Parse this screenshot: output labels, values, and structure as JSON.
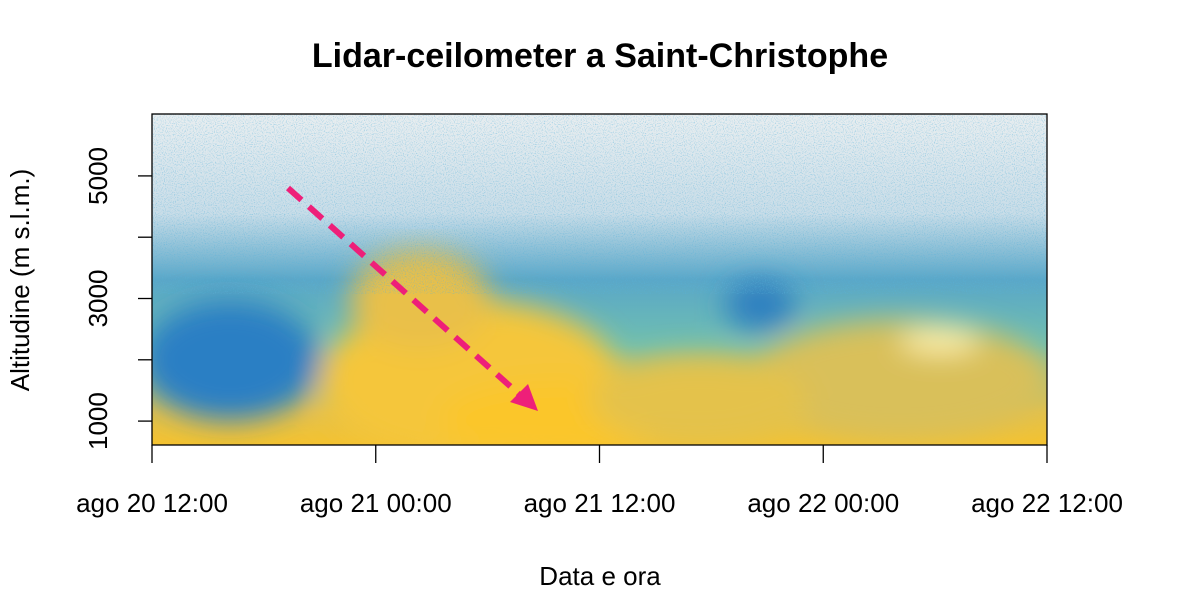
{
  "chart_data": {
    "type": "heatmap",
    "title": "Lidar-ceilometer a Saint-Christophe",
    "x_label": "Data e ora",
    "y_label": "Altitudine (m s.l.m.)",
    "xticks": [
      "ago 20 12:00",
      "ago 21 00:00",
      "ago 21 12:00",
      "ago 22 00:00",
      "ago 22 12:00"
    ],
    "ylim": [
      610,
      6010
    ],
    "yticks": [
      1000,
      3000,
      5000
    ],
    "yminor_ticks": [
      2000,
      4000
    ],
    "annotation_color": "#ee1f79"
  }
}
